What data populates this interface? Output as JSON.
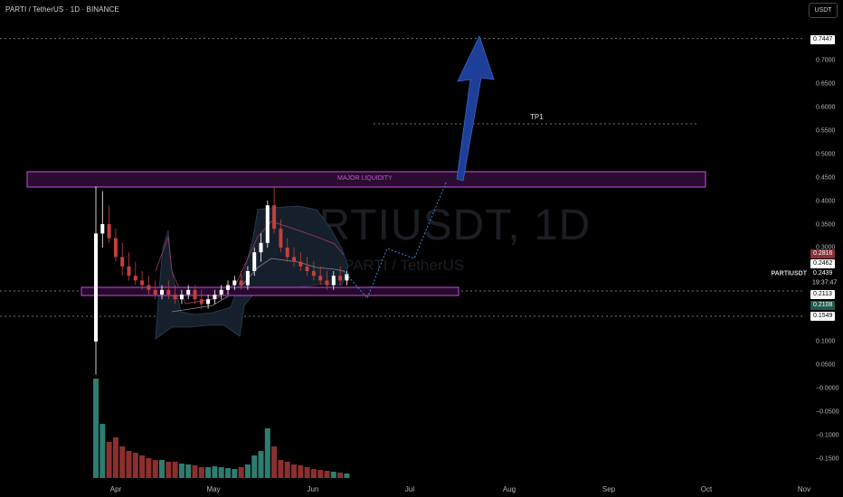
{
  "header": {
    "title": "PARTI / TetherUS · 1D · BINANCE"
  },
  "currency_button": {
    "label": "USDT"
  },
  "watermark": {
    "symbol": "PARTIUSDT, 1D",
    "name": "PARTI / TetherUS"
  },
  "annotations": {
    "liquidity_label": "MAJOR LIQUIDITY",
    "tp_label": "TP1"
  },
  "price_axis": {
    "ticks": [
      "0.7000",
      "0.6500",
      "0.6000",
      "0.5500",
      "0.5000",
      "0.4500",
      "0.4000",
      "0.3500",
      "0.3000",
      "0.1000",
      "0.0500",
      "−0.0000",
      "−0.0500",
      "−0.1000",
      "−0.1500"
    ]
  },
  "time_axis": {
    "labels": [
      "Apr",
      "May",
      "Jun",
      "Jul",
      "Aug",
      "Sep",
      "Oct",
      "Nov"
    ]
  },
  "price_labels": {
    "top_line": "0.7447",
    "upper_band": "0.2816",
    "mid_band": "0.2462",
    "symbol": "PARTIUSDT",
    "last_price": "0.2439",
    "countdown": "19:37:47",
    "zone_line": "0.2113",
    "lower_band": "0.2108",
    "low_line": "0.1549"
  },
  "colors": {
    "background": "#000000",
    "up": "#ffffff",
    "down": "#c2403f",
    "vol_up": "#2e7d6f",
    "vol_down": "#8c2f2f",
    "zone": "#b03fc6",
    "arrow": "#1e3f99",
    "band": "#2a4158",
    "projection": "#3f8bd8"
  },
  "chart_data": {
    "type": "candlestick",
    "symbol": "PARTIUSDT",
    "interval": "1D",
    "exchange": "BINANCE",
    "x_labels": [
      "Apr",
      "May",
      "Jun",
      "Jul",
      "Aug",
      "Sep",
      "Oct",
      "Nov"
    ],
    "candles_ohlc_approx": [
      [
        0.1,
        0.43,
        0.03,
        0.33
      ],
      [
        0.33,
        0.42,
        0.3,
        0.35
      ],
      [
        0.35,
        0.39,
        0.31,
        0.32
      ],
      [
        0.32,
        0.34,
        0.27,
        0.28
      ],
      [
        0.28,
        0.31,
        0.24,
        0.26
      ],
      [
        0.26,
        0.29,
        0.23,
        0.24
      ],
      [
        0.24,
        0.27,
        0.22,
        0.23
      ],
      [
        0.23,
        0.25,
        0.21,
        0.22
      ],
      [
        0.22,
        0.24,
        0.2,
        0.21
      ],
      [
        0.21,
        0.23,
        0.19,
        0.2
      ],
      [
        0.2,
        0.22,
        0.19,
        0.21
      ],
      [
        0.21,
        0.23,
        0.19,
        0.2
      ],
      [
        0.2,
        0.22,
        0.18,
        0.19
      ],
      [
        0.19,
        0.21,
        0.18,
        0.2
      ],
      [
        0.2,
        0.22,
        0.19,
        0.21
      ],
      [
        0.21,
        0.22,
        0.18,
        0.19
      ],
      [
        0.19,
        0.21,
        0.17,
        0.18
      ],
      [
        0.18,
        0.2,
        0.17,
        0.19
      ],
      [
        0.19,
        0.21,
        0.18,
        0.2
      ],
      [
        0.2,
        0.22,
        0.19,
        0.21
      ],
      [
        0.21,
        0.23,
        0.2,
        0.22
      ],
      [
        0.22,
        0.24,
        0.21,
        0.23
      ],
      [
        0.23,
        0.25,
        0.21,
        0.22
      ],
      [
        0.22,
        0.26,
        0.21,
        0.25
      ],
      [
        0.25,
        0.3,
        0.24,
        0.29
      ],
      [
        0.29,
        0.33,
        0.27,
        0.31
      ],
      [
        0.31,
        0.4,
        0.3,
        0.39
      ],
      [
        0.39,
        0.43,
        0.33,
        0.34
      ],
      [
        0.34,
        0.36,
        0.29,
        0.3
      ],
      [
        0.3,
        0.32,
        0.27,
        0.28
      ],
      [
        0.28,
        0.3,
        0.26,
        0.27
      ],
      [
        0.27,
        0.29,
        0.25,
        0.26
      ],
      [
        0.26,
        0.28,
        0.24,
        0.25
      ],
      [
        0.25,
        0.27,
        0.23,
        0.24
      ],
      [
        0.24,
        0.26,
        0.22,
        0.23
      ],
      [
        0.23,
        0.25,
        0.21,
        0.22
      ],
      [
        0.22,
        0.25,
        0.21,
        0.24
      ],
      [
        0.24,
        0.26,
        0.22,
        0.23
      ],
      [
        0.23,
        0.25,
        0.22,
        0.2439
      ]
    ],
    "levels": {
      "major_liquidity_zone": [
        0.43,
        0.46
      ],
      "tp1": 0.565,
      "support_zone": [
        0.21,
        0.225
      ],
      "top_line": 0.7447,
      "low_line": 0.1549
    },
    "projection_path": [
      0.2439,
      0.22,
      0.29,
      0.3,
      0.44
    ],
    "arrow_target": 0.75
  }
}
